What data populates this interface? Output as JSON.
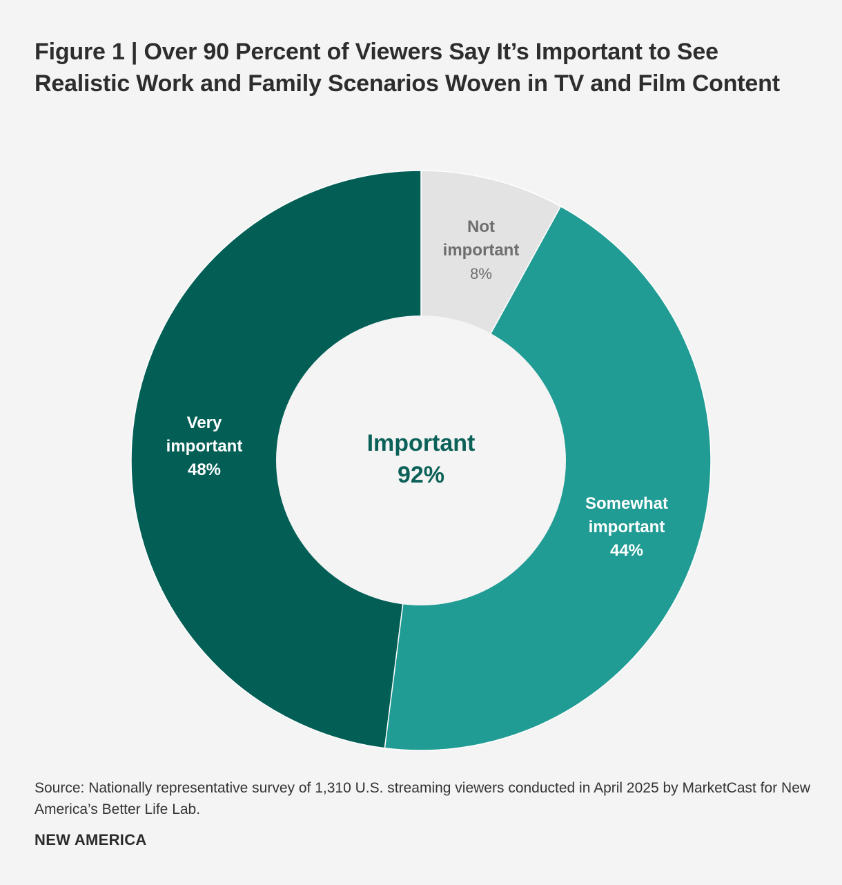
{
  "chart_data": {
    "type": "pie",
    "title": "Figure 1 | Over 90 Percent of Viewers Say It’s Important to See Realistic Work and Family Scenarios Woven in TV and Film Content",
    "slices": [
      {
        "id": "not-important",
        "label_lines": [
          "Not",
          "important"
        ],
        "value": 8,
        "value_label": "8%",
        "color": "#e3e3e3",
        "text_color": "#6e6e6e"
      },
      {
        "id": "somewhat-important",
        "label_lines": [
          "Somewhat",
          "important"
        ],
        "value": 44,
        "value_label": "44%",
        "color": "#219c94",
        "text_color": "#ffffff"
      },
      {
        "id": "very-important",
        "label_lines": [
          "Very",
          "important"
        ],
        "value": 48,
        "value_label": "48%",
        "color": "#035f56",
        "text_color": "#ffffff"
      }
    ],
    "center": {
      "label": "Important",
      "value_label": "92%",
      "color": "#0b6158"
    },
    "hole_color": "#f4f4f4"
  },
  "source": "Source: Nationally representative survey of 1,310 U.S. streaming viewers conducted in April 2025 by MarketCast for New America’s Better Life Lab.",
  "brand": "NEW AMERICA"
}
